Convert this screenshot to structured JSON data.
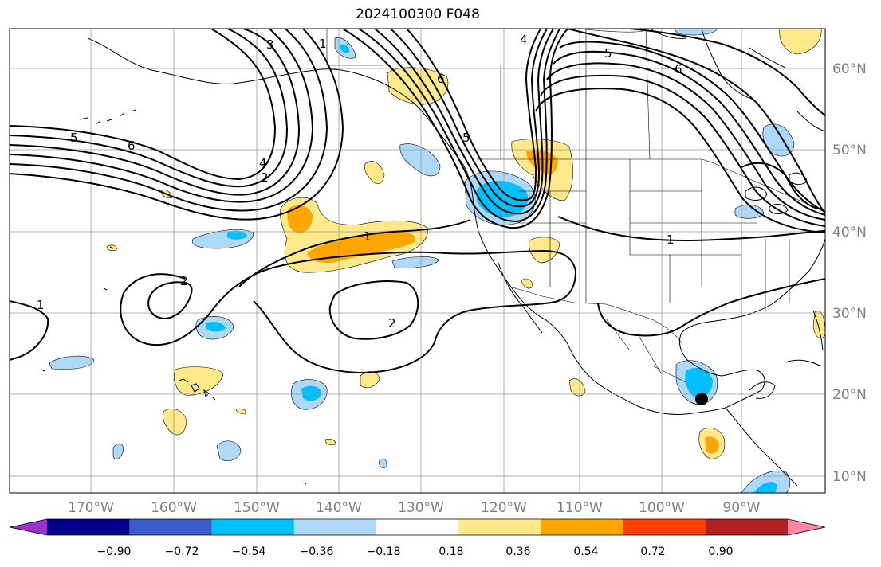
{
  "title": "2024100300 F048",
  "lon_labels": [
    "170°W",
    "160°W",
    "150°W",
    "140°W",
    "130°W",
    "120°W",
    "110°W",
    "100°W",
    "90°W"
  ],
  "lat_labels": [
    "60°N",
    "50°N",
    "40°N",
    "30°N",
    "20°N",
    "10°N"
  ],
  "colorbar": {
    "colors": [
      "#9932cc",
      "#00008b",
      "#3a5ccc",
      "#00bfff",
      "#add8f8",
      "#ffffff",
      "#ffe98a",
      "#ffa500",
      "#ff4000",
      "#b22222",
      "#ff88aa"
    ],
    "tick_labels": [
      "−0.90",
      "−0.72",
      "−0.54",
      "−0.36",
      "−0.18",
      "0.18",
      "0.36",
      "0.54",
      "0.72",
      "0.90"
    ]
  },
  "contour_labels": [
    "1",
    "2",
    "3",
    "4",
    "5",
    "6"
  ],
  "colors": {
    "contour": "#000000",
    "grid": "#9a9a9a",
    "coast": "#000000",
    "light_blue": "#add8f8",
    "blue": "#00bfff",
    "yellow": "#ffe98a",
    "orange": "#ffa500",
    "marker": "#000000"
  }
}
